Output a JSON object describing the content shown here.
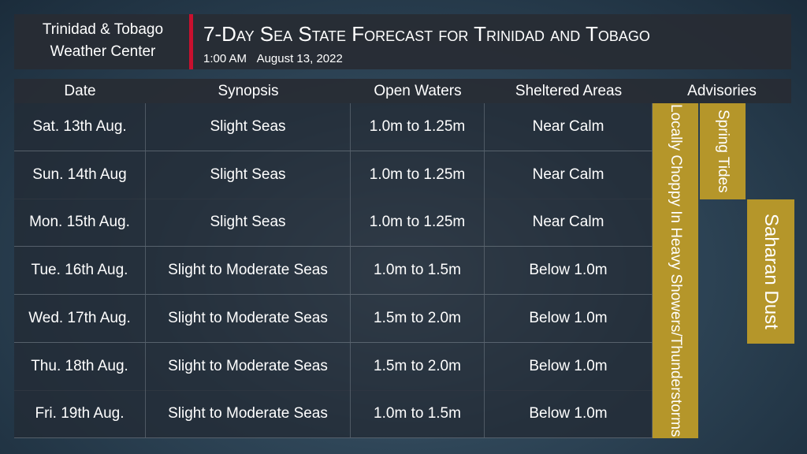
{
  "header": {
    "org": [
      "Trinidad & Tobago",
      "Weather Center"
    ],
    "title": "7-Day Sea State Forecast for Trinidad and Tobago",
    "time": "1:00 AM",
    "date": "August 13, 2022"
  },
  "table": {
    "columns": [
      "Date",
      "Synopsis",
      "Open Waters",
      "Sheltered Areas",
      "Advisories"
    ],
    "rows": [
      [
        "Sat. 13th Aug.",
        "Slight Seas",
        "1.0m to 1.25m",
        "Near Calm"
      ],
      [
        "Sun. 14th Aug",
        "Slight Seas",
        "1.0m to 1.25m",
        "Near Calm"
      ],
      [
        "Mon. 15th Aug.",
        "Slight Seas",
        "1.0m to 1.25m",
        "Near Calm"
      ],
      [
        "Tue. 16th Aug.",
        "Slight to Moderate Seas",
        "1.0m to 1.5m",
        "Below 1.0m"
      ],
      [
        "Wed. 17th Aug.",
        "Slight to Moderate Seas",
        "1.5m to 2.0m",
        "Below 1.0m"
      ],
      [
        "Thu. 18th Aug.",
        "Slight to Moderate Seas",
        "1.5m to 2.0m",
        "Below 1.0m"
      ],
      [
        "Fri. 19th Aug.",
        "Slight to Moderate Seas",
        "1.0m to 1.5m",
        "Below 1.0m"
      ]
    ]
  },
  "advisories": [
    "Locally Choppy In Heavy Showers/Thunderstorms",
    "Spring Tides",
    "Saharan Dust"
  ]
}
